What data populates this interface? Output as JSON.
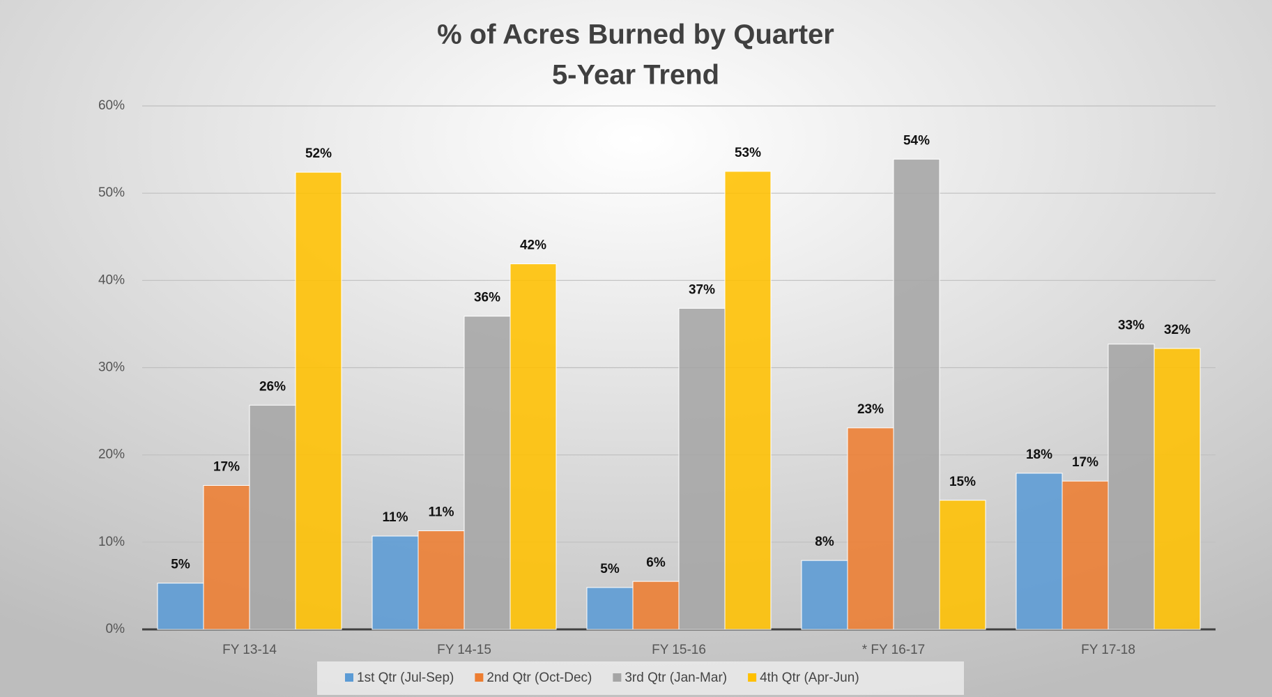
{
  "chart_data": {
    "type": "bar",
    "title": "% of Acres Burned by Quarter",
    "subtitle": "5-Year Trend",
    "categories": [
      "FY 13-14",
      "FY 14-15",
      "FY 15-16",
      "* FY 16-17",
      "FY 17-18"
    ],
    "series": [
      {
        "name": "1st Qtr (Jul-Sep)",
        "color": "#5b9bd5",
        "values": [
          5.3,
          10.7,
          4.8,
          7.9,
          17.9
        ],
        "value_labels": [
          "5%",
          "11%",
          "5%",
          "8%",
          "18%"
        ]
      },
      {
        "name": "2nd Qtr (Oct-Dec)",
        "color": "#ed7d31",
        "values": [
          16.5,
          11.3,
          5.5,
          23.1,
          17.0
        ],
        "value_labels": [
          "17%",
          "11%",
          "6%",
          "23%",
          "17%"
        ]
      },
      {
        "name": "3rd Qtr (Jan-Mar)",
        "color": "#a5a5a5",
        "values": [
          25.7,
          35.9,
          36.8,
          53.9,
          32.7
        ],
        "value_labels": [
          "26%",
          "36%",
          "37%",
          "54%",
          "33%"
        ]
      },
      {
        "name": "4th Qtr (Apr-Jun)",
        "color": "#ffc000",
        "values": [
          52.4,
          41.9,
          52.5,
          14.8,
          32.2
        ],
        "value_labels": [
          "52%",
          "42%",
          "53%",
          "15%",
          "32%"
        ]
      }
    ],
    "ylim": [
      0,
      60
    ],
    "yticks": [
      {
        "value": 0,
        "label": "0%"
      },
      {
        "value": 10,
        "label": "10%"
      },
      {
        "value": 20,
        "label": "20%"
      },
      {
        "value": 30,
        "label": "30%"
      },
      {
        "value": 40,
        "label": "40%"
      },
      {
        "value": 50,
        "label": "50%"
      },
      {
        "value": 60,
        "label": "60%"
      }
    ],
    "grid": true,
    "legend": "bottom"
  }
}
